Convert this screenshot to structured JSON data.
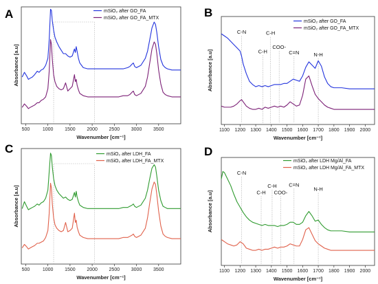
{
  "colors": {
    "blue": "#2233dd",
    "purple": "#7b1f76",
    "green": "#2e9a2e",
    "red": "#e0604a"
  },
  "chart_data": [
    {
      "panel": "A",
      "type": "line",
      "xlabel": "Wavenumber [cm⁻¹]",
      "ylabel": "Absorbance [a.u]",
      "xlim": [
        400,
        4000
      ],
      "xticks": [
        500,
        1000,
        1500,
        2000,
        2500,
        3000,
        3500
      ],
      "legend": "top-right",
      "series": [
        {
          "name": "mSiO₂ after GO_FA",
          "color": "#2233dd",
          "x": [
            420,
            470,
            520,
            560,
            600,
            650,
            700,
            760,
            800,
            850,
            900,
            950,
            1000,
            1030,
            1060,
            1080,
            1100,
            1130,
            1160,
            1200,
            1250,
            1300,
            1350,
            1400,
            1450,
            1500,
            1550,
            1600,
            1620,
            1640,
            1660,
            1690,
            1720,
            1760,
            1800,
            1900,
            2000,
            2100,
            2200,
            2300,
            2400,
            2500,
            2600,
            2700,
            2800,
            2850,
            2900,
            2930,
            2960,
            3000,
            3100,
            3200,
            3250,
            3300,
            3350,
            3400,
            3430,
            3460,
            3500,
            3550,
            3600,
            3650,
            3700,
            3800,
            3900,
            4000
          ],
          "y": [
            0.4,
            0.44,
            0.41,
            0.38,
            0.39,
            0.4,
            0.42,
            0.45,
            0.44,
            0.46,
            0.47,
            0.5,
            0.56,
            0.72,
            0.98,
            0.97,
            0.88,
            0.8,
            0.74,
            0.7,
            0.66,
            0.63,
            0.6,
            0.6,
            0.58,
            0.57,
            0.58,
            0.64,
            0.61,
            0.66,
            0.62,
            0.56,
            0.52,
            0.5,
            0.48,
            0.47,
            0.47,
            0.47,
            0.47,
            0.47,
            0.47,
            0.47,
            0.47,
            0.47,
            0.48,
            0.49,
            0.51,
            0.52,
            0.49,
            0.48,
            0.5,
            0.56,
            0.62,
            0.72,
            0.82,
            0.87,
            0.85,
            0.78,
            0.66,
            0.55,
            0.5,
            0.48,
            0.47,
            0.46,
            0.46,
            0.46
          ]
        },
        {
          "name": "mSiO₂ after GO_FA_MTX",
          "color": "#7b1f76",
          "x": [
            420,
            470,
            520,
            560,
            600,
            650,
            700,
            760,
            800,
            850,
            900,
            950,
            1000,
            1030,
            1060,
            1080,
            1100,
            1130,
            1160,
            1200,
            1250,
            1300,
            1350,
            1400,
            1450,
            1500,
            1550,
            1600,
            1620,
            1640,
            1660,
            1690,
            1720,
            1760,
            1800,
            1900,
            2000,
            2100,
            2200,
            2300,
            2400,
            2500,
            2600,
            2700,
            2800,
            2850,
            2900,
            2930,
            2960,
            3000,
            3100,
            3200,
            3250,
            3300,
            3350,
            3400,
            3430,
            3460,
            3500,
            3550,
            3600,
            3650,
            3700,
            3800,
            3900,
            4000
          ],
          "y": [
            0.14,
            0.17,
            0.15,
            0.13,
            0.14,
            0.15,
            0.16,
            0.18,
            0.18,
            0.2,
            0.21,
            0.23,
            0.3,
            0.45,
            0.72,
            0.68,
            0.55,
            0.42,
            0.36,
            0.32,
            0.3,
            0.29,
            0.3,
            0.35,
            0.28,
            0.3,
            0.32,
            0.42,
            0.36,
            0.38,
            0.33,
            0.29,
            0.26,
            0.25,
            0.24,
            0.23,
            0.23,
            0.23,
            0.23,
            0.23,
            0.23,
            0.23,
            0.23,
            0.24,
            0.24,
            0.25,
            0.27,
            0.28,
            0.25,
            0.24,
            0.26,
            0.32,
            0.4,
            0.52,
            0.64,
            0.7,
            0.68,
            0.6,
            0.46,
            0.34,
            0.27,
            0.25,
            0.24,
            0.23,
            0.23,
            0.23
          ]
        }
      ]
    },
    {
      "panel": "B",
      "type": "line",
      "xlabel": "Wavenumber [cm⁻¹]",
      "ylabel": "Absorbance [a.u]",
      "xlim": [
        1080,
        2060
      ],
      "xticks": [
        1100,
        1200,
        1300,
        1400,
        1500,
        1600,
        1700,
        1800,
        1900,
        2000
      ],
      "legend": "top-right",
      "annotations": [
        {
          "text": "C-N",
          "x": 1210,
          "y": 0.84
        },
        {
          "text": "C-H",
          "x": 1345,
          "y": 0.66
        },
        {
          "text": "C-H",
          "x": 1395,
          "y": 0.83
        },
        {
          "text": "COO-",
          "x": 1450,
          "y": 0.7
        },
        {
          "text": "C=N",
          "x": 1545,
          "y": 0.65
        },
        {
          "text": "N-H",
          "x": 1700,
          "y": 0.63
        }
      ],
      "series": [
        {
          "name": "mSiO₂ after GO_FA",
          "color": "#2233dd",
          "x": [
            1080,
            1100,
            1120,
            1140,
            1160,
            1180,
            1200,
            1210,
            1220,
            1240,
            1260,
            1280,
            1300,
            1320,
            1340,
            1360,
            1380,
            1400,
            1420,
            1440,
            1460,
            1480,
            1500,
            1520,
            1540,
            1560,
            1580,
            1600,
            1620,
            1640,
            1660,
            1680,
            1700,
            1720,
            1740,
            1760,
            1780,
            1800,
            1850,
            1900,
            1950,
            2000,
            2060
          ],
          "y": [
            0.84,
            0.82,
            0.8,
            0.77,
            0.74,
            0.71,
            0.68,
            0.63,
            0.56,
            0.47,
            0.4,
            0.37,
            0.35,
            0.36,
            0.35,
            0.36,
            0.35,
            0.36,
            0.37,
            0.37,
            0.37,
            0.38,
            0.38,
            0.4,
            0.42,
            0.41,
            0.4,
            0.45,
            0.53,
            0.58,
            0.55,
            0.52,
            0.59,
            0.54,
            0.44,
            0.38,
            0.35,
            0.34,
            0.34,
            0.33,
            0.33,
            0.33,
            0.33
          ]
        },
        {
          "name": "mSiO₂ after GO_FA_MTX",
          "color": "#7b1f76",
          "x": [
            1080,
            1100,
            1120,
            1140,
            1160,
            1180,
            1200,
            1210,
            1220,
            1240,
            1260,
            1280,
            1300,
            1320,
            1340,
            1360,
            1380,
            1400,
            1420,
            1440,
            1460,
            1480,
            1500,
            1520,
            1540,
            1560,
            1580,
            1600,
            1620,
            1640,
            1660,
            1680,
            1700,
            1720,
            1740,
            1760,
            1780,
            1800,
            1850,
            1900,
            1950,
            2000,
            2060
          ],
          "y": [
            0.17,
            0.16,
            0.16,
            0.16,
            0.17,
            0.19,
            0.22,
            0.23,
            0.21,
            0.17,
            0.15,
            0.14,
            0.14,
            0.15,
            0.14,
            0.16,
            0.15,
            0.16,
            0.17,
            0.16,
            0.17,
            0.16,
            0.18,
            0.21,
            0.19,
            0.17,
            0.18,
            0.27,
            0.42,
            0.45,
            0.36,
            0.28,
            0.24,
            0.21,
            0.18,
            0.16,
            0.15,
            0.14,
            0.14,
            0.14,
            0.14,
            0.14,
            0.14
          ]
        }
      ]
    },
    {
      "panel": "C",
      "type": "line",
      "xlabel": "Wavenumber [cm⁻¹]",
      "ylabel": "Absorbance [a.u]",
      "xlim": [
        400,
        4000
      ],
      "xticks": [
        500,
        1000,
        1500,
        2000,
        2500,
        3000,
        3500
      ],
      "legend": "top-right",
      "series": [
        {
          "name": "mSiO₂ after LDH_FA",
          "color": "#2e9a2e",
          "x": [
            420,
            470,
            520,
            560,
            600,
            650,
            700,
            760,
            800,
            850,
            900,
            950,
            1000,
            1030,
            1060,
            1080,
            1100,
            1130,
            1160,
            1200,
            1250,
            1300,
            1350,
            1400,
            1450,
            1500,
            1550,
            1600,
            1620,
            1640,
            1660,
            1690,
            1720,
            1760,
            1800,
            1900,
            2000,
            2100,
            2200,
            2300,
            2400,
            2500,
            2600,
            2700,
            2800,
            2850,
            2900,
            2930,
            2960,
            3000,
            3100,
            3200,
            3250,
            3300,
            3350,
            3400,
            3430,
            3460,
            3500,
            3550,
            3600,
            3650,
            3700,
            3800,
            3900,
            4000
          ],
          "y": [
            0.48,
            0.54,
            0.5,
            0.47,
            0.48,
            0.49,
            0.5,
            0.52,
            0.51,
            0.53,
            0.54,
            0.57,
            0.64,
            0.8,
            0.96,
            0.94,
            0.84,
            0.74,
            0.68,
            0.64,
            0.61,
            0.59,
            0.57,
            0.58,
            0.56,
            0.55,
            0.56,
            0.62,
            0.58,
            0.63,
            0.58,
            0.54,
            0.51,
            0.5,
            0.49,
            0.48,
            0.48,
            0.48,
            0.48,
            0.48,
            0.48,
            0.48,
            0.48,
            0.49,
            0.49,
            0.5,
            0.51,
            0.52,
            0.5,
            0.49,
            0.51,
            0.57,
            0.64,
            0.74,
            0.83,
            0.86,
            0.84,
            0.76,
            0.64,
            0.55,
            0.5,
            0.49,
            0.48,
            0.48,
            0.48,
            0.48
          ]
        },
        {
          "name": "mSiO₂ after LDH_FA_MTX",
          "color": "#e0604a",
          "x": [
            420,
            470,
            520,
            560,
            600,
            650,
            700,
            760,
            800,
            850,
            900,
            950,
            1000,
            1030,
            1060,
            1080,
            1100,
            1130,
            1160,
            1200,
            1250,
            1300,
            1350,
            1400,
            1450,
            1500,
            1550,
            1600,
            1620,
            1640,
            1660,
            1690,
            1720,
            1760,
            1800,
            1900,
            2000,
            2100,
            2200,
            2300,
            2400,
            2500,
            2600,
            2700,
            2800,
            2850,
            2900,
            2930,
            2960,
            3000,
            3100,
            3200,
            3250,
            3300,
            3350,
            3400,
            3430,
            3460,
            3500,
            3550,
            3600,
            3650,
            3700,
            3800,
            3900,
            4000
          ],
          "y": [
            0.14,
            0.17,
            0.15,
            0.13,
            0.14,
            0.15,
            0.16,
            0.18,
            0.18,
            0.19,
            0.2,
            0.23,
            0.29,
            0.44,
            0.7,
            0.66,
            0.52,
            0.4,
            0.34,
            0.31,
            0.29,
            0.28,
            0.29,
            0.36,
            0.28,
            0.29,
            0.31,
            0.44,
            0.36,
            0.38,
            0.32,
            0.28,
            0.25,
            0.24,
            0.23,
            0.22,
            0.22,
            0.22,
            0.22,
            0.22,
            0.22,
            0.22,
            0.22,
            0.23,
            0.23,
            0.24,
            0.25,
            0.26,
            0.24,
            0.23,
            0.25,
            0.31,
            0.4,
            0.53,
            0.65,
            0.71,
            0.69,
            0.6,
            0.46,
            0.33,
            0.26,
            0.24,
            0.23,
            0.22,
            0.22,
            0.22
          ]
        }
      ]
    },
    {
      "panel": "D",
      "type": "line",
      "xlabel": "Wavenumber [cm⁻¹]",
      "ylabel": "Absorbance [a.u]",
      "xlim": [
        1080,
        2060
      ],
      "xticks": [
        1100,
        1200,
        1300,
        1400,
        1500,
        1600,
        1700,
        1800,
        1900,
        2000
      ],
      "legend": "top-right",
      "annotations": [
        {
          "text": "C-N",
          "x": 1210,
          "y": 0.84
        },
        {
          "text": "C-H",
          "x": 1335,
          "y": 0.66
        },
        {
          "text": "C-H",
          "x": 1405,
          "y": 0.72
        },
        {
          "text": "COO-",
          "x": 1460,
          "y": 0.66
        },
        {
          "text": "C=N",
          "x": 1545,
          "y": 0.73
        },
        {
          "text": "N-H",
          "x": 1700,
          "y": 0.69
        }
      ],
      "series": [
        {
          "name": "mSiO₂ after LDH Mg/Al_FA",
          "color": "#2e9a2e",
          "x": [
            1080,
            1090,
            1100,
            1120,
            1140,
            1160,
            1180,
            1200,
            1220,
            1240,
            1260,
            1280,
            1300,
            1320,
            1340,
            1360,
            1380,
            1400,
            1420,
            1440,
            1460,
            1480,
            1500,
            1520,
            1540,
            1560,
            1580,
            1600,
            1620,
            1640,
            1660,
            1680,
            1700,
            1720,
            1740,
            1760,
            1780,
            1800,
            1850,
            1900,
            1950,
            2000,
            2060
          ],
          "y": [
            0.8,
            0.87,
            0.86,
            0.8,
            0.74,
            0.66,
            0.59,
            0.54,
            0.49,
            0.45,
            0.42,
            0.4,
            0.39,
            0.38,
            0.37,
            0.38,
            0.37,
            0.37,
            0.37,
            0.36,
            0.37,
            0.37,
            0.38,
            0.4,
            0.4,
            0.38,
            0.38,
            0.4,
            0.46,
            0.5,
            0.46,
            0.41,
            0.42,
            0.38,
            0.35,
            0.33,
            0.32,
            0.32,
            0.32,
            0.31,
            0.31,
            0.31,
            0.31
          ]
        },
        {
          "name": "mSiO₂ after LDH Mg/Al_FA_MTX",
          "color": "#e0604a",
          "x": [
            1080,
            1090,
            1100,
            1120,
            1140,
            1160,
            1180,
            1200,
            1220,
            1240,
            1260,
            1280,
            1300,
            1320,
            1340,
            1360,
            1380,
            1400,
            1420,
            1440,
            1460,
            1480,
            1500,
            1520,
            1540,
            1560,
            1580,
            1600,
            1620,
            1640,
            1660,
            1680,
            1700,
            1720,
            1740,
            1760,
            1780,
            1800,
            1850,
            1900,
            1950,
            2000,
            2060
          ],
          "y": [
            0.24,
            0.23,
            0.22,
            0.2,
            0.19,
            0.18,
            0.19,
            0.22,
            0.2,
            0.16,
            0.15,
            0.14,
            0.14,
            0.15,
            0.14,
            0.15,
            0.15,
            0.16,
            0.17,
            0.16,
            0.17,
            0.17,
            0.18,
            0.2,
            0.19,
            0.18,
            0.18,
            0.24,
            0.33,
            0.35,
            0.29,
            0.23,
            0.2,
            0.18,
            0.16,
            0.15,
            0.14,
            0.14,
            0.14,
            0.14,
            0.14,
            0.14,
            0.14
          ]
        }
      ]
    }
  ]
}
